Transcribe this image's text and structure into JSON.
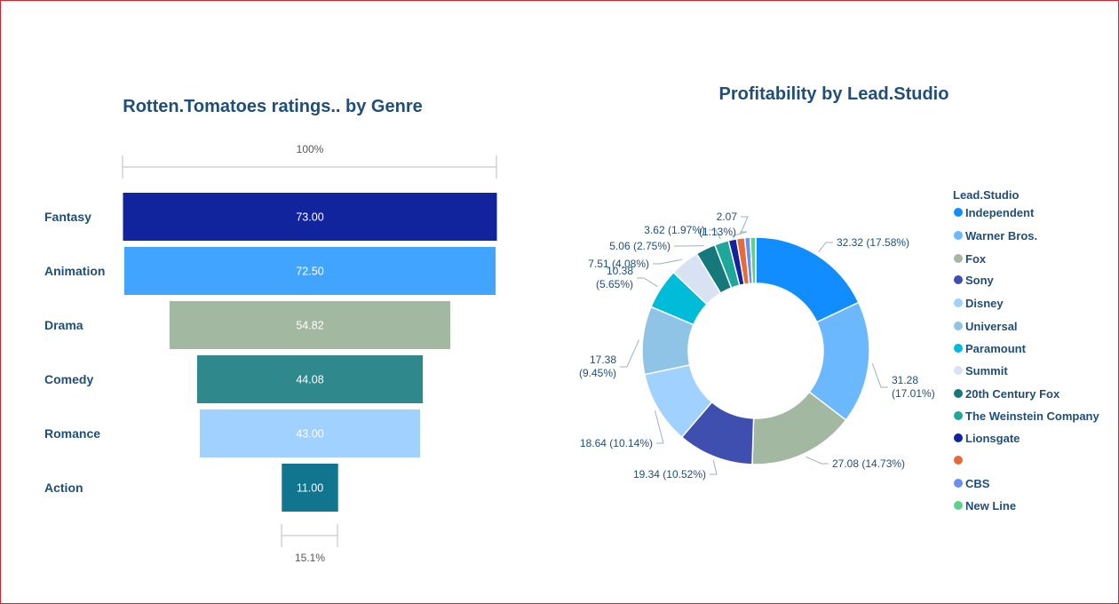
{
  "chart_data": [
    {
      "type": "funnel",
      "title": "Rotten.Tomatoes ratings.. by Genre",
      "top_percent_label": "100%",
      "bottom_percent_label": "15.1%",
      "categories": [
        "Fantasy",
        "Animation",
        "Drama",
        "Comedy",
        "Romance",
        "Action"
      ],
      "values": [
        73.0,
        72.5,
        54.82,
        44.08,
        43.0,
        11.0
      ],
      "value_labels": [
        "73.00",
        "72.50",
        "54.82",
        "44.08",
        "43.00",
        "11.00"
      ],
      "colors": [
        "#12239e",
        "#41a4ff",
        "#a3b8a0",
        "#2e888c",
        "#a0d1ff",
        "#127590"
      ]
    },
    {
      "type": "pie",
      "donut": true,
      "title": "Profitability by Lead.Studio",
      "legend_title": "Lead.Studio",
      "legend_position": "right",
      "series": [
        {
          "name": "Independent",
          "value": 32.32,
          "label": "32.32 (17.58%)",
          "color": "#118dff"
        },
        {
          "name": "Warner Bros.",
          "value": 31.28,
          "label": "31.28 (17.01%)",
          "color": "#6bb8ff"
        },
        {
          "name": "Fox",
          "value": 27.08,
          "label": "27.08 (14.73%)",
          "color": "#a3b8a0"
        },
        {
          "name": "Sony",
          "value": 19.34,
          "label": "19.34 (10.52%)",
          "color": "#3f4fb0"
        },
        {
          "name": "Disney",
          "value": 18.64,
          "label": "18.64 (10.14%)",
          "color": "#a0d1ff"
        },
        {
          "name": "Universal",
          "value": 17.38,
          "label": "17.38 (9.45%)",
          "color": "#8fc4e6"
        },
        {
          "name": "Paramount",
          "value": 10.38,
          "label": "10.38 (5.65%)",
          "color": "#00bcd8"
        },
        {
          "name": "Summit",
          "value": 7.51,
          "label": "7.51 (4.08%)",
          "color": "#d8e2f2"
        },
        {
          "name": "20th Century Fox",
          "value": 5.06,
          "label": "5.06 (2.75%)",
          "color": "#15787b"
        },
        {
          "name": "The Weinstein Company",
          "value": 3.62,
          "label": "3.62 (1.97%)",
          "color": "#1fa89a"
        },
        {
          "name": "Lionsgate",
          "value": 2.07,
          "label": "(1.13%)",
          "color": "#12239e"
        },
        {
          "name": "",
          "value": 2.07,
          "label": "2.07",
          "color": "#e66c37"
        },
        {
          "name": "CBS",
          "value": 1.4,
          "label": "",
          "color": "#6b8ff0"
        },
        {
          "name": "New Line",
          "value": 1.4,
          "label": "",
          "color": "#5fcf8c"
        }
      ]
    }
  ]
}
